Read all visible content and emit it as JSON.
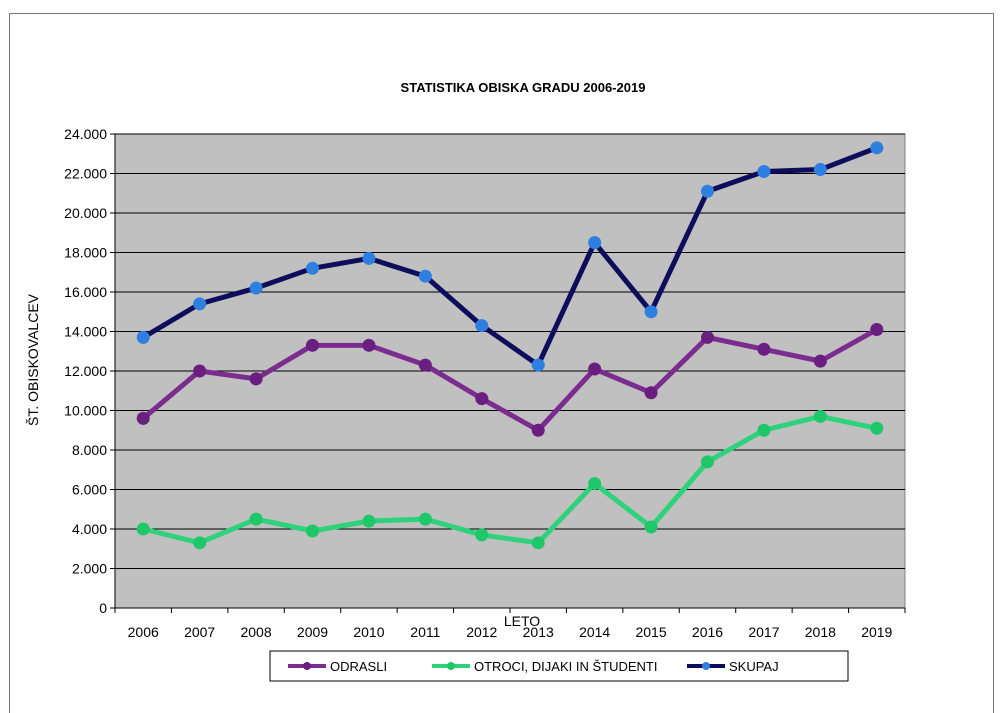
{
  "chart_data": {
    "type": "line",
    "title": "STATISTIKA  OBISKA GRADU 2006-2019",
    "xlabel": "LETO",
    "ylabel": "ŠT. OBISKOVALCEV",
    "categories": [
      "2006",
      "2007",
      "2008",
      "2009",
      "2010",
      "2011",
      "2012",
      "2013",
      "2014",
      "2015",
      "2016",
      "2017",
      "2018",
      "2019"
    ],
    "ylim": [
      0,
      24000
    ],
    "ytick_values": [
      0,
      2000,
      4000,
      6000,
      8000,
      10000,
      12000,
      14000,
      16000,
      18000,
      20000,
      22000,
      24000
    ],
    "ytick_labels": [
      "0",
      "2.000",
      "4.000",
      "6.000",
      "8.000",
      "10.000",
      "12.000",
      "14.000",
      "16.000",
      "18.000",
      "20.000",
      "22.000",
      "24.000"
    ],
    "grid": true,
    "plot_background": "#C0C0C0",
    "legend_position": "bottom",
    "series": [
      {
        "name": "ODRASLI",
        "color": "#7B2C8F",
        "marker_color": "#6A1E7F",
        "values": [
          9600,
          12000,
          11600,
          13300,
          13300,
          12300,
          10600,
          9000,
          12100,
          10900,
          13700,
          13100,
          12500,
          14100
        ]
      },
      {
        "name": "OTROCI, DIJAKI IN ŠTUDENTI",
        "color": "#2ED27A",
        "marker_color": "#1FC76A",
        "values": [
          4000,
          3300,
          4500,
          3900,
          4400,
          4500,
          3700,
          3300,
          6300,
          4100,
          7400,
          9000,
          9700,
          9100
        ]
      },
      {
        "name": "SKUPAJ",
        "color": "#0D0D5C",
        "marker_color": "#2E7FE0",
        "values": [
          13700,
          15400,
          16200,
          17200,
          17700,
          16800,
          14300,
          12300,
          18500,
          15000,
          21100,
          22100,
          22200,
          23300
        ]
      }
    ]
  }
}
